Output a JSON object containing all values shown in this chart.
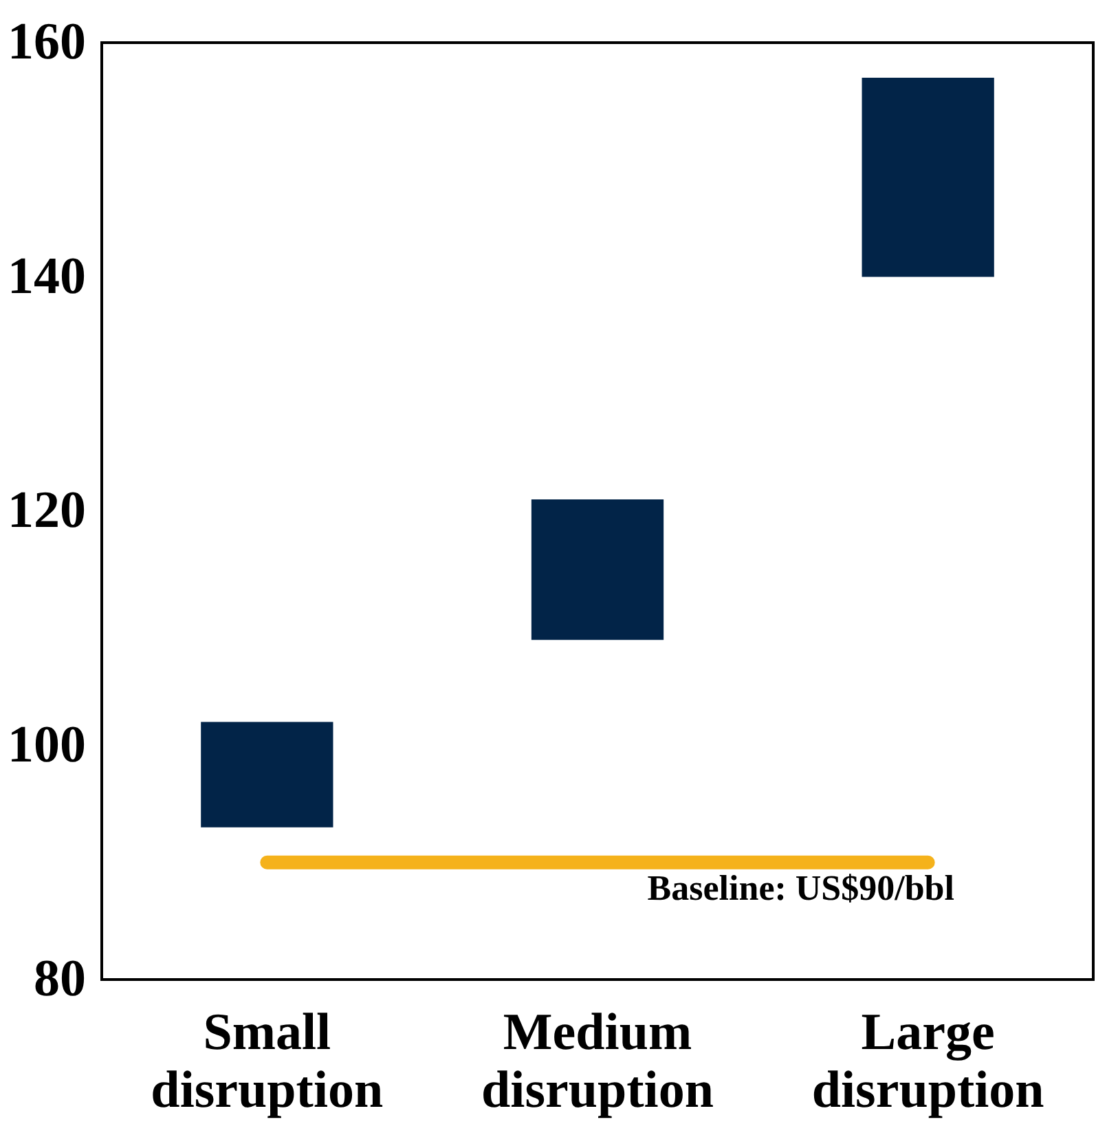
{
  "chart_data": {
    "type": "bar",
    "categories": [
      "Small disruption",
      "Medium disruption",
      "Large disruption"
    ],
    "values": [
      9,
      12,
      17
    ],
    "base": [
      93,
      109,
      140
    ],
    "colors": [
      "#022448",
      "#022448",
      "#022448"
    ],
    "ylim": [
      80,
      160
    ],
    "yticks": [
      80,
      100,
      120,
      140,
      160
    ],
    "grid": false,
    "ref_lines": [
      {
        "axis": "y",
        "value": 90,
        "label": "Baseline: US$90/bbl",
        "color": "#f5b21b"
      }
    ]
  }
}
